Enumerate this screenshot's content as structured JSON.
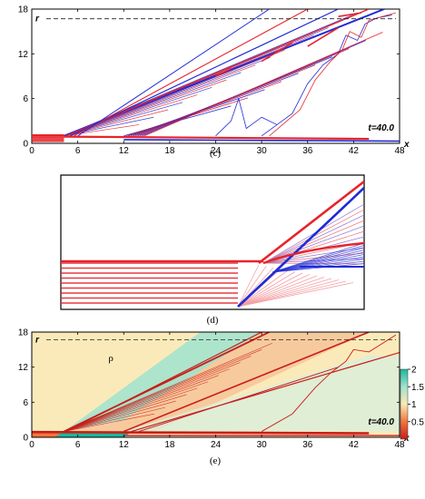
{
  "chart_data": [
    {
      "panel": "(c)",
      "type": "line",
      "axis_x_label": "x",
      "axis_y_label": "r",
      "time_label": "t=40.0",
      "x_ticks": [
        "0",
        "6",
        "12",
        "18",
        "24",
        "30",
        "36",
        "42",
        "48"
      ],
      "y_ticks": [
        "0",
        "6",
        "12",
        "18"
      ],
      "xlim": [
        0,
        48
      ],
      "ylim": [
        0,
        18
      ],
      "dashed_r": 16.7,
      "colors": {
        "red": "#e8232a",
        "blue": "#1f2bd6"
      }
    },
    {
      "panel": "(d)",
      "type": "line",
      "colors": {
        "red": "#e8232a",
        "blue": "#1f2bd6"
      }
    },
    {
      "panel": "(e)",
      "type": "heatmap",
      "axis_x_label": "x",
      "axis_y_label": "r",
      "field_label": "ρ",
      "time_label": "t=40.0",
      "x_ticks": [
        "0",
        "6",
        "12",
        "18",
        "24",
        "30",
        "36",
        "42",
        "48"
      ],
      "y_ticks": [
        "0",
        "6",
        "12",
        "18"
      ],
      "xlim": [
        0,
        48
      ],
      "ylim": [
        0,
        18
      ],
      "dashed_r": 16.7,
      "colorbar_ticks": [
        "2",
        "1.5",
        "1",
        "0.5"
      ],
      "colorbar_range": [
        0,
        2
      ],
      "colormap": [
        "#c91d19",
        "#f2763a",
        "#fbe9b4",
        "#9fe3cf",
        "#1bb89c"
      ]
    }
  ]
}
